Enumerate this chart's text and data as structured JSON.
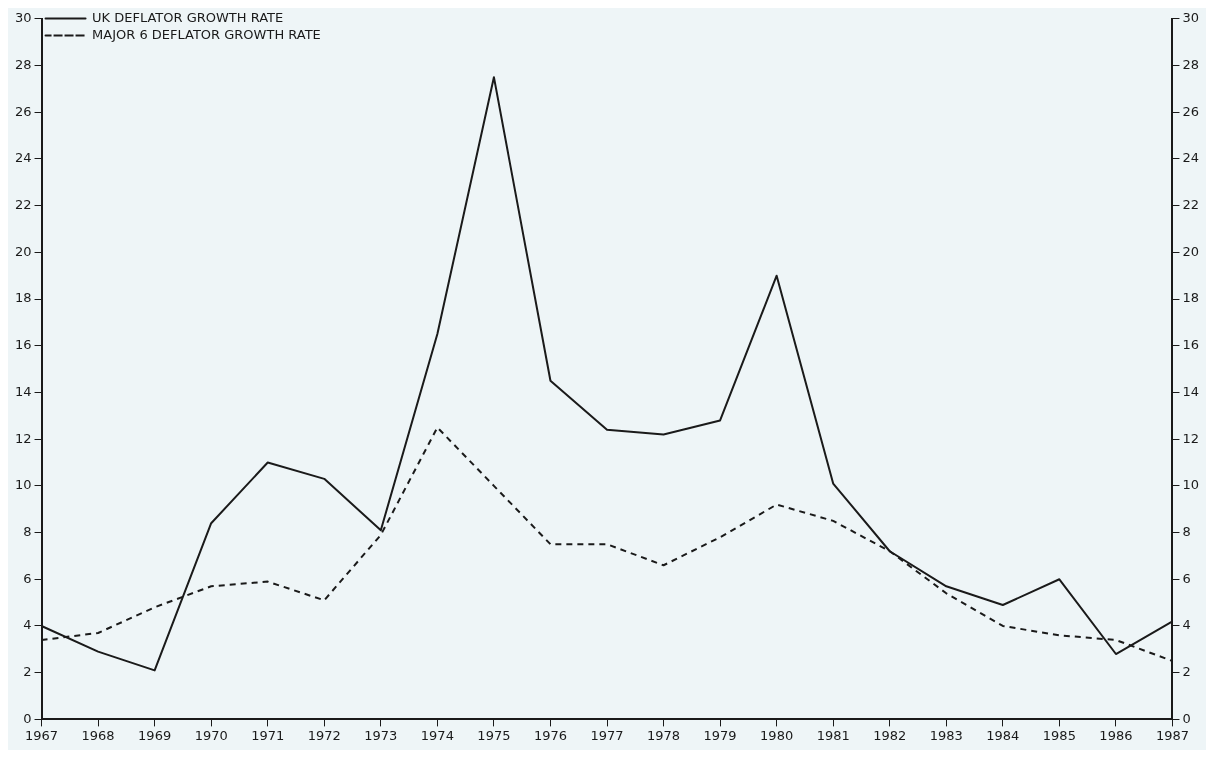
{
  "chart_data": {
    "type": "line",
    "categories": [
      "1967",
      "1968",
      "1969",
      "1970",
      "1971",
      "1972",
      "1973",
      "1974",
      "1975",
      "1976",
      "1977",
      "1978",
      "1979",
      "1980",
      "1981",
      "1982",
      "1983",
      "1984",
      "1985",
      "1986",
      "1987"
    ],
    "series": [
      {
        "name": "UK DEFLATOR GROWTH RATE",
        "color": "#1a1a1a",
        "line_style": "solid",
        "values": [
          4.0,
          2.9,
          2.1,
          8.4,
          11.0,
          10.3,
          8.1,
          16.5,
          27.5,
          14.5,
          12.4,
          12.2,
          12.8,
          19.0,
          10.1,
          7.2,
          5.7,
          4.9,
          6.0,
          2.8,
          4.2
        ]
      },
      {
        "name": "MAJOR 6 DEFLATOR GROWTH RATE",
        "color": "#1a1a1a",
        "line_style": "dashed",
        "values": [
          3.4,
          3.7,
          4.8,
          5.7,
          5.9,
          5.1,
          7.9,
          12.5,
          10.0,
          7.5,
          7.5,
          6.6,
          7.8,
          9.2,
          8.5,
          7.2,
          5.4,
          4.0,
          3.6,
          3.4,
          2.5
        ]
      }
    ],
    "ylim": [
      0,
      30
    ],
    "yticks": [
      0,
      2,
      4,
      6,
      8,
      10,
      12,
      14,
      16,
      18,
      20,
      22,
      24,
      26,
      28,
      30
    ],
    "y2lim": [
      0,
      30
    ],
    "y2ticks": [
      0,
      2,
      4,
      6,
      8,
      10,
      12,
      14,
      16,
      18,
      20,
      22,
      24,
      26,
      28,
      30
    ],
    "grid": false,
    "legend": "top left",
    "marker": "none"
  }
}
